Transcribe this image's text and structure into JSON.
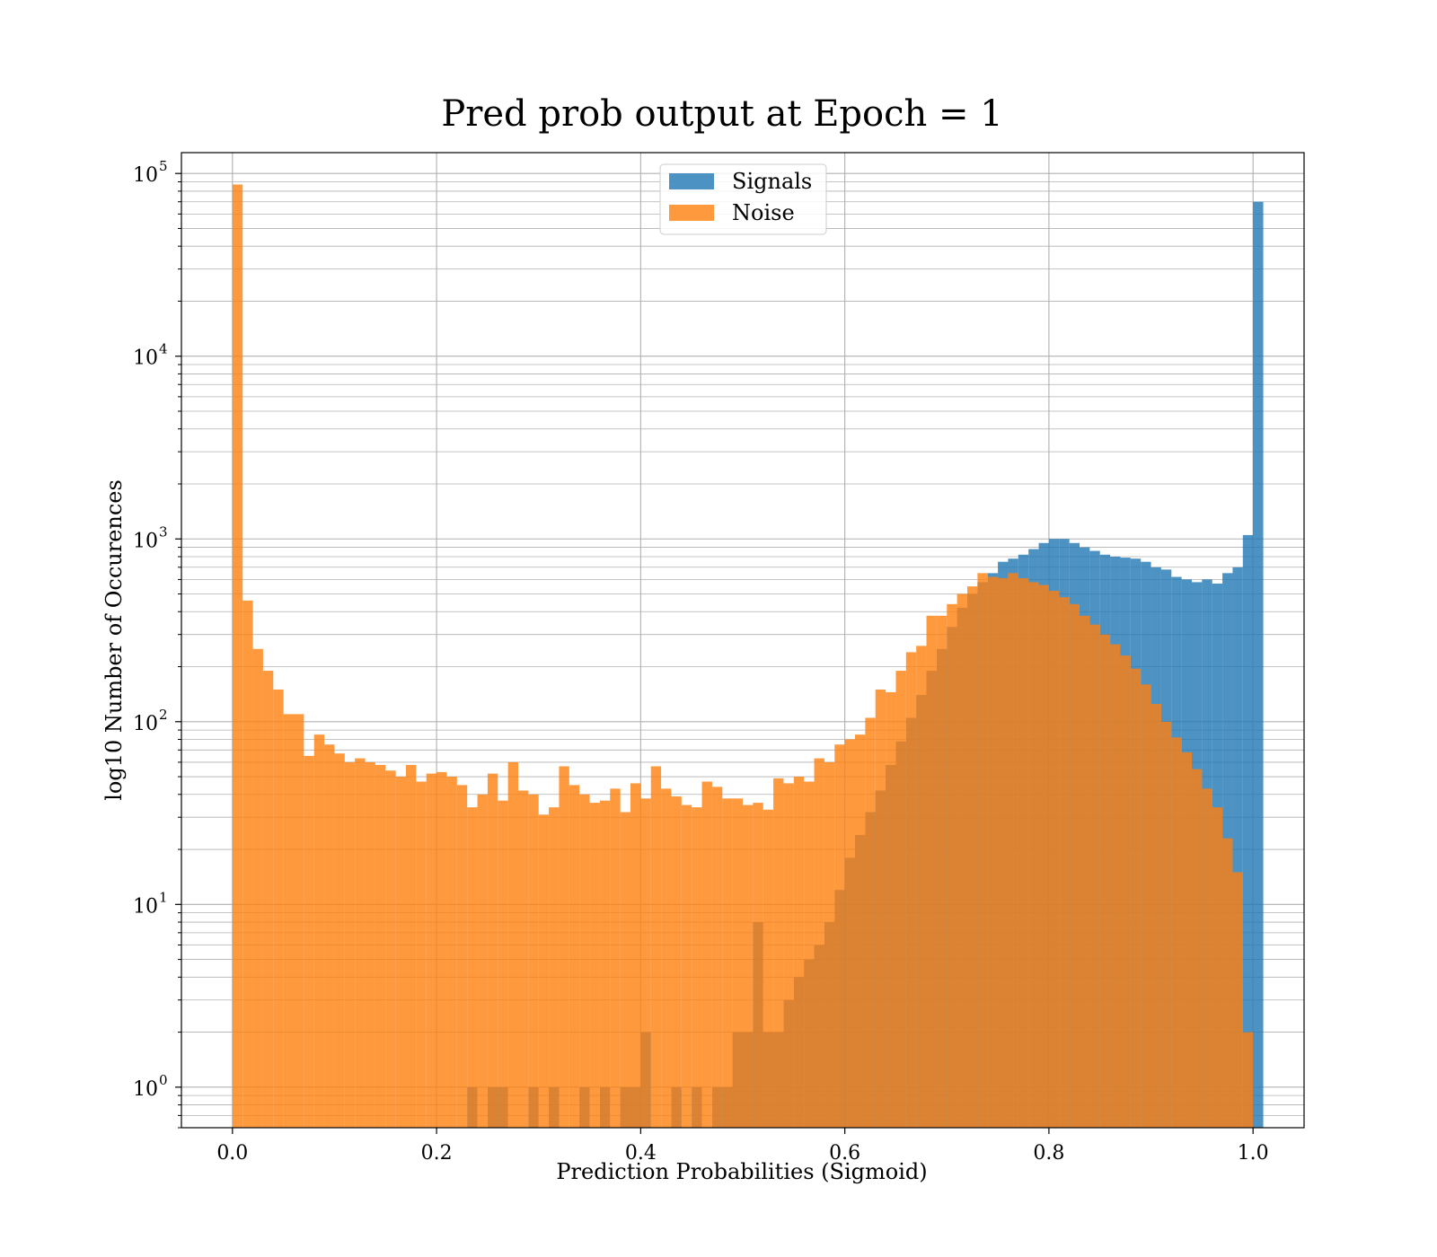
{
  "chart_data": {
    "type": "bar",
    "title": "Pred prob output at Epoch = 1",
    "xlabel": "Prediction Probabilities (Sigmoid)",
    "ylabel": "log10 Number of Occurences",
    "xlim": [
      -0.05,
      1.05
    ],
    "ylim": [
      0.6,
      130000
    ],
    "yscale": "log",
    "grid": true,
    "legend_position": "top-center",
    "x_ticks": [
      "0.0",
      "0.2",
      "0.4",
      "0.6",
      "0.8",
      "1.0"
    ],
    "x_tick_values": [
      0.0,
      0.2,
      0.4,
      0.6,
      0.8,
      1.0
    ],
    "y_ticks": [
      {
        "base": "10",
        "exp": "0",
        "value": 1
      },
      {
        "base": "10",
        "exp": "1",
        "value": 10
      },
      {
        "base": "10",
        "exp": "2",
        "value": 100
      },
      {
        "base": "10",
        "exp": "3",
        "value": 1000
      },
      {
        "base": "10",
        "exp": "4",
        "value": 10000
      },
      {
        "base": "10",
        "exp": "5",
        "value": 100000
      }
    ],
    "bin_width": 0.01,
    "series": [
      {
        "name": "Signals",
        "color": "#1f77b4",
        "bins": [
          [
            0.23,
            1
          ],
          [
            0.25,
            1
          ],
          [
            0.26,
            1
          ],
          [
            0.29,
            1
          ],
          [
            0.31,
            1
          ],
          [
            0.34,
            1
          ],
          [
            0.36,
            1
          ],
          [
            0.38,
            1
          ],
          [
            0.39,
            1
          ],
          [
            0.4,
            2
          ],
          [
            0.43,
            1
          ],
          [
            0.45,
            1
          ],
          [
            0.47,
            1
          ],
          [
            0.48,
            1
          ],
          [
            0.49,
            2
          ],
          [
            0.5,
            2
          ],
          [
            0.51,
            8
          ],
          [
            0.52,
            2
          ],
          [
            0.53,
            2
          ],
          [
            0.54,
            3
          ],
          [
            0.55,
            4
          ],
          [
            0.56,
            5
          ],
          [
            0.57,
            6
          ],
          [
            0.58,
            8
          ],
          [
            0.59,
            12
          ],
          [
            0.6,
            18
          ],
          [
            0.61,
            24
          ],
          [
            0.62,
            32
          ],
          [
            0.63,
            42
          ],
          [
            0.64,
            58
          ],
          [
            0.65,
            78
          ],
          [
            0.66,
            105
          ],
          [
            0.67,
            140
          ],
          [
            0.68,
            190
          ],
          [
            0.69,
            250
          ],
          [
            0.7,
            330
          ],
          [
            0.71,
            420
          ],
          [
            0.72,
            500
          ],
          [
            0.73,
            580
          ],
          [
            0.74,
            650
          ],
          [
            0.75,
            750
          ],
          [
            0.76,
            780
          ],
          [
            0.77,
            820
          ],
          [
            0.78,
            880
          ],
          [
            0.79,
            950
          ],
          [
            0.8,
            1000
          ],
          [
            0.81,
            1000
          ],
          [
            0.82,
            950
          ],
          [
            0.83,
            900
          ],
          [
            0.84,
            860
          ],
          [
            0.85,
            820
          ],
          [
            0.86,
            800
          ],
          [
            0.87,
            790
          ],
          [
            0.88,
            780
          ],
          [
            0.89,
            750
          ],
          [
            0.9,
            700
          ],
          [
            0.91,
            680
          ],
          [
            0.92,
            620
          ],
          [
            0.93,
            600
          ],
          [
            0.94,
            580
          ],
          [
            0.95,
            600
          ],
          [
            0.96,
            570
          ],
          [
            0.97,
            650
          ],
          [
            0.98,
            700
          ],
          [
            0.99,
            1050
          ],
          [
            1.0,
            70000
          ]
        ]
      },
      {
        "name": "Noise",
        "color": "#ff7f0e",
        "bins": [
          [
            0.0,
            87000
          ],
          [
            0.01,
            460
          ],
          [
            0.02,
            250
          ],
          [
            0.03,
            190
          ],
          [
            0.04,
            150
          ],
          [
            0.05,
            110
          ],
          [
            0.06,
            110
          ],
          [
            0.07,
            65
          ],
          [
            0.08,
            85
          ],
          [
            0.09,
            75
          ],
          [
            0.1,
            67
          ],
          [
            0.11,
            60
          ],
          [
            0.12,
            63
          ],
          [
            0.13,
            60
          ],
          [
            0.14,
            58
          ],
          [
            0.15,
            54
          ],
          [
            0.16,
            50
          ],
          [
            0.17,
            58
          ],
          [
            0.18,
            47
          ],
          [
            0.19,
            52
          ],
          [
            0.2,
            53
          ],
          [
            0.21,
            50
          ],
          [
            0.22,
            45
          ],
          [
            0.23,
            34
          ],
          [
            0.24,
            40
          ],
          [
            0.25,
            52
          ],
          [
            0.26,
            37
          ],
          [
            0.27,
            60
          ],
          [
            0.28,
            42
          ],
          [
            0.29,
            40
          ],
          [
            0.3,
            31
          ],
          [
            0.31,
            34
          ],
          [
            0.32,
            57
          ],
          [
            0.33,
            45
          ],
          [
            0.34,
            40
          ],
          [
            0.35,
            36
          ],
          [
            0.36,
            37
          ],
          [
            0.37,
            43
          ],
          [
            0.38,
            32
          ],
          [
            0.39,
            46
          ],
          [
            0.4,
            38
          ],
          [
            0.41,
            57
          ],
          [
            0.42,
            43
          ],
          [
            0.43,
            39
          ],
          [
            0.44,
            35
          ],
          [
            0.45,
            34
          ],
          [
            0.46,
            47
          ],
          [
            0.47,
            44
          ],
          [
            0.48,
            38
          ],
          [
            0.49,
            38
          ],
          [
            0.5,
            35
          ],
          [
            0.51,
            36
          ],
          [
            0.52,
            33
          ],
          [
            0.53,
            49
          ],
          [
            0.54,
            46
          ],
          [
            0.55,
            50
          ],
          [
            0.56,
            47
          ],
          [
            0.57,
            63
          ],
          [
            0.58,
            60
          ],
          [
            0.59,
            75
          ],
          [
            0.6,
            80
          ],
          [
            0.61,
            85
          ],
          [
            0.62,
            105
          ],
          [
            0.63,
            150
          ],
          [
            0.64,
            145
          ],
          [
            0.65,
            190
          ],
          [
            0.66,
            240
          ],
          [
            0.67,
            260
          ],
          [
            0.68,
            380
          ],
          [
            0.69,
            380
          ],
          [
            0.7,
            440
          ],
          [
            0.71,
            500
          ],
          [
            0.72,
            550
          ],
          [
            0.73,
            650
          ],
          [
            0.74,
            620
          ],
          [
            0.75,
            610
          ],
          [
            0.76,
            650
          ],
          [
            0.77,
            610
          ],
          [
            0.78,
            580
          ],
          [
            0.79,
            560
          ],
          [
            0.8,
            520
          ],
          [
            0.81,
            480
          ],
          [
            0.82,
            440
          ],
          [
            0.83,
            380
          ],
          [
            0.84,
            340
          ],
          [
            0.85,
            300
          ],
          [
            0.86,
            265
          ],
          [
            0.87,
            230
          ],
          [
            0.88,
            195
          ],
          [
            0.89,
            160
          ],
          [
            0.9,
            125
          ],
          [
            0.91,
            100
          ],
          [
            0.92,
            82
          ],
          [
            0.93,
            68
          ],
          [
            0.94,
            55
          ],
          [
            0.95,
            43
          ],
          [
            0.96,
            34
          ],
          [
            0.97,
            23
          ],
          [
            0.98,
            15
          ],
          [
            0.99,
            2
          ]
        ]
      }
    ]
  }
}
